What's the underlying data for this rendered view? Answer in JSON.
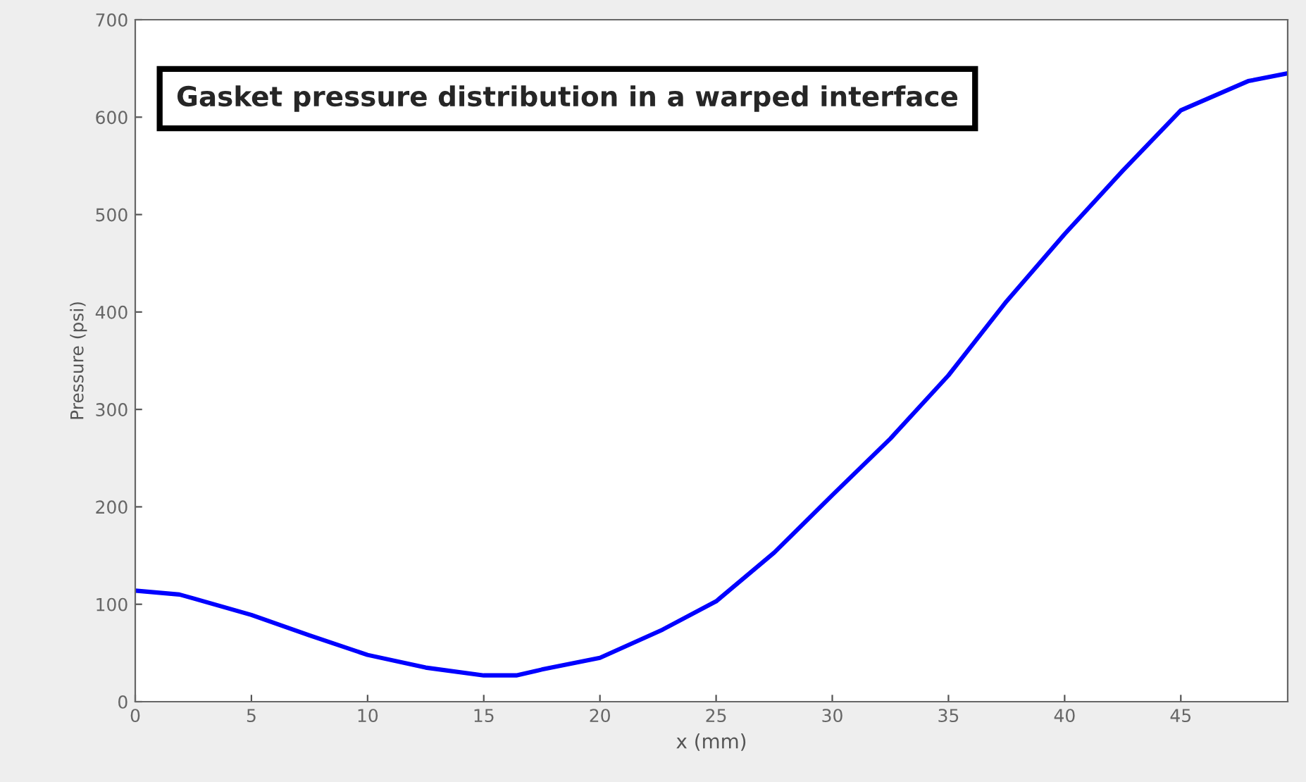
{
  "chart_data": {
    "type": "line",
    "title": "Gasket pressure distribution in a warped interface",
    "xlabel": "x (mm)",
    "ylabel": "Pressure (psi)",
    "x": [
      0,
      1.9,
      2.5,
      5,
      7.5,
      10,
      12.5,
      15,
      16.4,
      17.5,
      20,
      22.7,
      25,
      27.5,
      30,
      32.5,
      35,
      37.5,
      40,
      42.5,
      45,
      47.9,
      49.6
    ],
    "series": [
      {
        "color": "#0000ff",
        "values": [
          114,
          110,
          106,
          89,
          68,
          48,
          35,
          27,
          27,
          33,
          45,
          74,
          103,
          153,
          212,
          270,
          335,
          411,
          480,
          545,
          607,
          637,
          645
        ]
      }
    ],
    "xlim": [
      0,
      49.6
    ],
    "ylim": [
      0,
      700
    ],
    "xticks": [
      0,
      5,
      10,
      15,
      20,
      25,
      30,
      35,
      40,
      45
    ],
    "yticks": [
      0,
      100,
      200,
      300,
      400,
      500,
      600,
      700
    ],
    "grid": false,
    "legend": false,
    "marker": "none",
    "line_style": "solid"
  }
}
